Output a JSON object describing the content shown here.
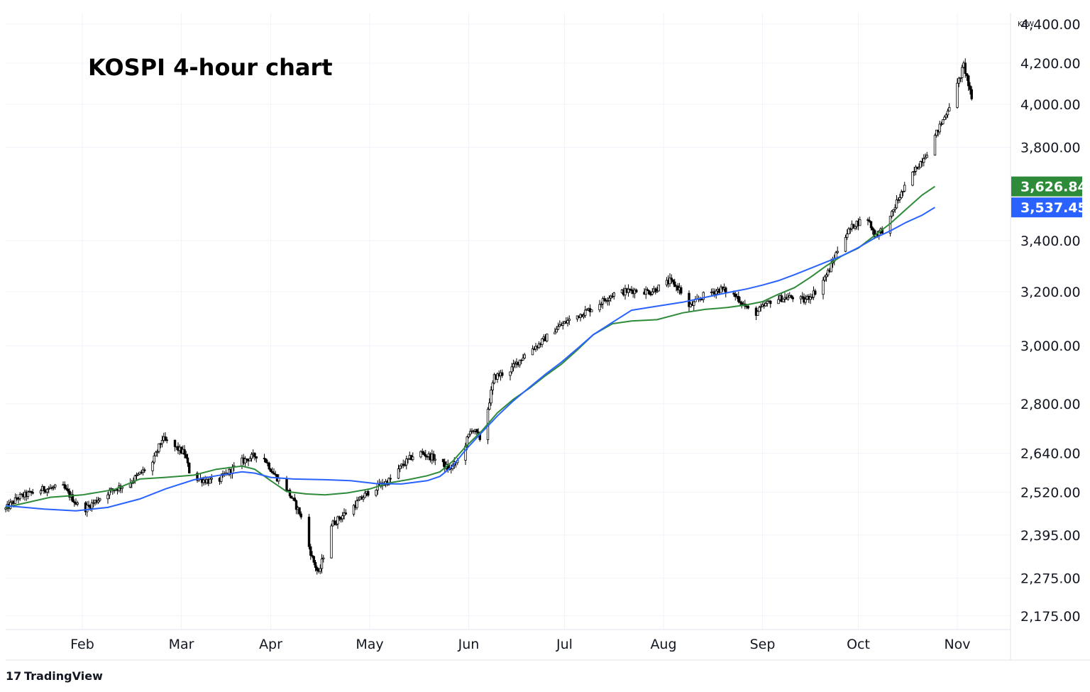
{
  "chart_data": {
    "type": "candlestick",
    "title": "KOSPI 4-hour chart",
    "currency": "KRW",
    "ylim": [
      2140,
      4460
    ],
    "y_ticks": [
      "2,175.00",
      "2,275.00",
      "2,395.00",
      "2,520.00",
      "2,640.00",
      "2,800.00",
      "3,000.00",
      "3,200.00",
      "3,400.00",
      "3,800.00",
      "4,000.00",
      "4,200.00",
      "4,400.00"
    ],
    "y_tick_values": [
      2175,
      2275,
      2395,
      2520,
      2640,
      2800,
      3000,
      3200,
      3400,
      3800,
      4000,
      4200,
      4400
    ],
    "x_months": [
      "Feb",
      "Mar",
      "Apr",
      "May",
      "Jun",
      "Jul",
      "Aug",
      "Sep",
      "Oct",
      "Nov"
    ],
    "x_month_days": [
      20,
      51,
      79,
      110,
      141,
      171,
      202,
      233,
      263,
      294
    ],
    "days_span": [
      -4,
      300
    ],
    "price_path": [
      [
        -4,
        2470
      ],
      [
        0,
        2505
      ],
      [
        8,
        2530
      ],
      [
        14,
        2535
      ],
      [
        20,
        2465
      ],
      [
        28,
        2520
      ],
      [
        35,
        2550
      ],
      [
        42,
        2610
      ],
      [
        45,
        2685
      ],
      [
        52,
        2640
      ],
      [
        54,
        2565
      ],
      [
        62,
        2550
      ],
      [
        70,
        2615
      ],
      [
        76,
        2640
      ],
      [
        80,
        2575
      ],
      [
        84,
        2530
      ],
      [
        88,
        2460
      ],
      [
        92,
        2330
      ],
      [
        94,
        2285
      ],
      [
        98,
        2425
      ],
      [
        104,
        2470
      ],
      [
        110,
        2525
      ],
      [
        116,
        2555
      ],
      [
        120,
        2600
      ],
      [
        125,
        2645
      ],
      [
        130,
        2625
      ],
      [
        135,
        2590
      ],
      [
        138,
        2620
      ],
      [
        142,
        2720
      ],
      [
        145,
        2680
      ],
      [
        149,
        2890
      ],
      [
        154,
        2915
      ],
      [
        160,
        2985
      ],
      [
        163,
        3005
      ],
      [
        168,
        3060
      ],
      [
        172,
        3090
      ],
      [
        180,
        3140
      ],
      [
        186,
        3190
      ],
      [
        192,
        3205
      ],
      [
        198,
        3200
      ],
      [
        204,
        3240
      ],
      [
        207,
        3210
      ],
      [
        210,
        3140
      ],
      [
        215,
        3190
      ],
      [
        220,
        3210
      ],
      [
        225,
        3180
      ],
      [
        230,
        3110
      ],
      [
        236,
        3170
      ],
      [
        243,
        3180
      ],
      [
        246,
        3165
      ],
      [
        250,
        3205
      ],
      [
        254,
        3285
      ],
      [
        258,
        3410
      ],
      [
        262,
        3470
      ],
      [
        266,
        3490
      ],
      [
        268,
        3425
      ],
      [
        272,
        3455
      ],
      [
        275,
        3560
      ],
      [
        280,
        3680
      ],
      [
        285,
        3790
      ],
      [
        290,
        3940
      ],
      [
        294,
        4090
      ],
      [
        296,
        4190
      ],
      [
        297,
        4130
      ],
      [
        299,
        3980
      ],
      [
        300,
        4000
      ]
    ],
    "series": [
      {
        "name": "Moving average (green)",
        "color": "#2e8b3a",
        "last_value": 3626.84,
        "last_label": "3,626.84",
        "points": [
          [
            -4,
            2475
          ],
          [
            10,
            2505
          ],
          [
            20,
            2512
          ],
          [
            30,
            2528
          ],
          [
            38,
            2560
          ],
          [
            46,
            2565
          ],
          [
            55,
            2572
          ],
          [
            62,
            2590
          ],
          [
            70,
            2600
          ],
          [
            74,
            2590
          ],
          [
            79,
            2555
          ],
          [
            84,
            2522
          ],
          [
            90,
            2515
          ],
          [
            96,
            2512
          ],
          [
            103,
            2518
          ],
          [
            110,
            2530
          ],
          [
            116,
            2548
          ],
          [
            122,
            2558
          ],
          [
            128,
            2570
          ],
          [
            132,
            2582
          ],
          [
            136,
            2615
          ],
          [
            140,
            2660
          ],
          [
            145,
            2710
          ],
          [
            150,
            2770
          ],
          [
            155,
            2815
          ],
          [
            160,
            2852
          ],
          [
            165,
            2895
          ],
          [
            170,
            2935
          ],
          [
            175,
            2985
          ],
          [
            180,
            3040
          ],
          [
            186,
            3080
          ],
          [
            192,
            3090
          ],
          [
            200,
            3095
          ],
          [
            208,
            3120
          ],
          [
            215,
            3133
          ],
          [
            222,
            3140
          ],
          [
            228,
            3150
          ],
          [
            233,
            3162
          ],
          [
            238,
            3190
          ],
          [
            243,
            3215
          ],
          [
            248,
            3255
          ],
          [
            253,
            3300
          ],
          [
            258,
            3340
          ],
          [
            263,
            3370
          ],
          [
            268,
            3420
          ],
          [
            273,
            3470
          ],
          [
            278,
            3530
          ],
          [
            283,
            3590
          ],
          [
            287,
            3626.84
          ]
        ]
      },
      {
        "name": "Moving average (blue)",
        "color": "#2962ff",
        "last_value": 3537.45,
        "last_label": "3,537.45",
        "points": [
          [
            -4,
            2480
          ],
          [
            8,
            2470
          ],
          [
            18,
            2465
          ],
          [
            28,
            2475
          ],
          [
            38,
            2500
          ],
          [
            46,
            2530
          ],
          [
            55,
            2558
          ],
          [
            62,
            2570
          ],
          [
            70,
            2582
          ],
          [
            74,
            2578
          ],
          [
            79,
            2565
          ],
          [
            86,
            2560
          ],
          [
            96,
            2558
          ],
          [
            104,
            2555
          ],
          [
            112,
            2546
          ],
          [
            120,
            2545
          ],
          [
            128,
            2555
          ],
          [
            132,
            2568
          ],
          [
            136,
            2600
          ],
          [
            140,
            2650
          ],
          [
            145,
            2705
          ],
          [
            150,
            2760
          ],
          [
            155,
            2810
          ],
          [
            160,
            2855
          ],
          [
            165,
            2900
          ],
          [
            170,
            2942
          ],
          [
            175,
            2990
          ],
          [
            180,
            3040
          ],
          [
            186,
            3085
          ],
          [
            192,
            3130
          ],
          [
            200,
            3145
          ],
          [
            208,
            3160
          ],
          [
            215,
            3178
          ],
          [
            222,
            3196
          ],
          [
            228,
            3210
          ],
          [
            233,
            3225
          ],
          [
            238,
            3242
          ],
          [
            243,
            3265
          ],
          [
            248,
            3290
          ],
          [
            253,
            3315
          ],
          [
            258,
            3340
          ],
          [
            263,
            3372
          ],
          [
            268,
            3410
          ],
          [
            273,
            3440
          ],
          [
            278,
            3475
          ],
          [
            283,
            3505
          ],
          [
            287,
            3537.45
          ]
        ]
      }
    ]
  },
  "branding": {
    "logo_glyph": "17",
    "logo_text": "TradingView"
  }
}
